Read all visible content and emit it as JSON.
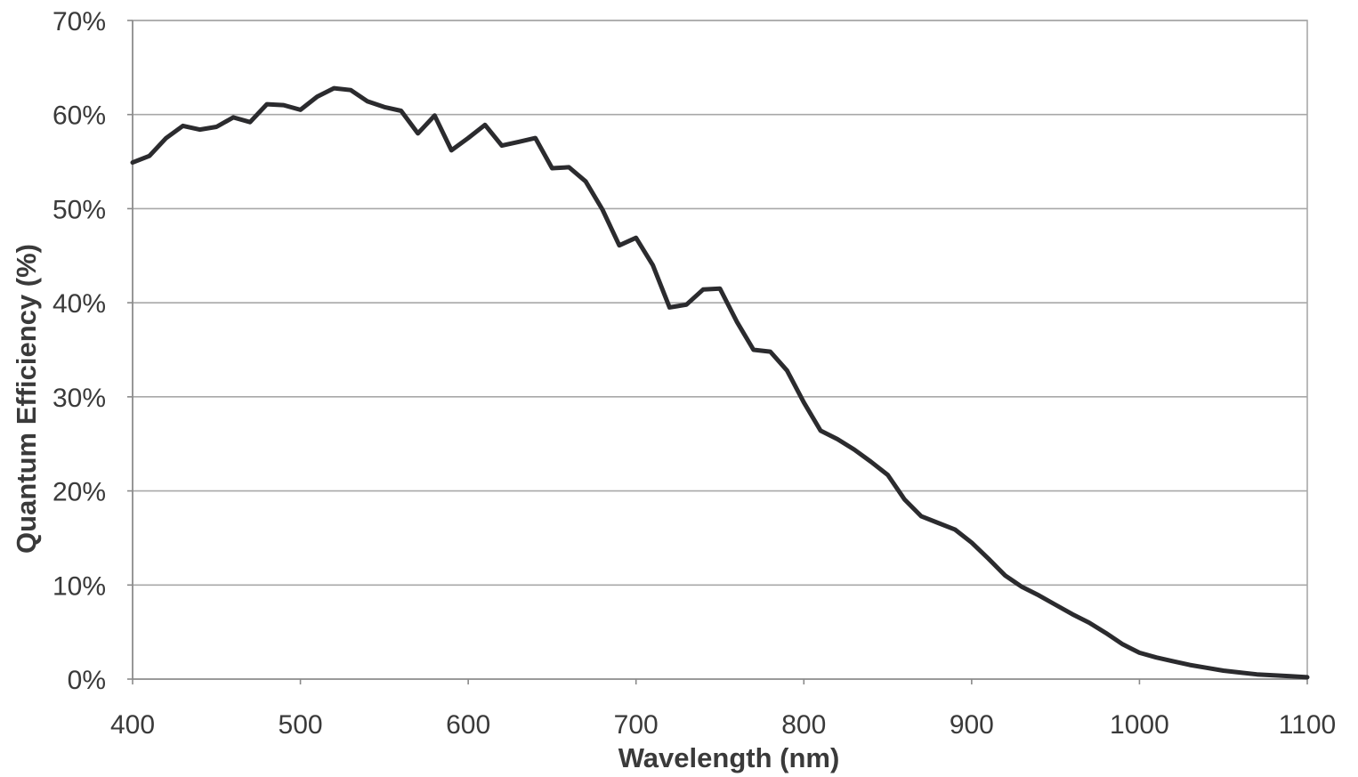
{
  "chart_data": {
    "type": "line",
    "xlabel": "Wavelength (nm)",
    "ylabel": "Quantum Efficiency (%)",
    "xlim": [
      400,
      1100
    ],
    "ylim": [
      0,
      70
    ],
    "x_ticks": [
      400,
      500,
      600,
      700,
      800,
      900,
      1000,
      1100
    ],
    "x_tick_labels": [
      "400",
      "500",
      "600",
      "700",
      "800",
      "900",
      "1000",
      "1100"
    ],
    "y_ticks": [
      0,
      10,
      20,
      30,
      40,
      50,
      60,
      70
    ],
    "y_tick_labels": [
      "0%",
      "10%",
      "20%",
      "30%",
      "40%",
      "50%",
      "60%",
      "70%"
    ],
    "grid": true,
    "legend": "none",
    "line_color": "#2b2b2e",
    "series": [
      {
        "x": [
          400,
          410,
          420,
          430,
          440,
          450,
          460,
          470,
          480,
          490,
          500,
          510,
          520,
          530,
          540,
          550,
          560,
          570,
          580,
          590,
          600,
          610,
          620,
          630,
          640,
          650,
          660,
          670,
          680,
          690,
          700,
          710,
          720,
          730,
          740,
          750,
          760,
          770,
          780,
          790,
          800,
          810,
          820,
          830,
          840,
          850,
          860,
          870,
          880,
          890,
          900,
          910,
          920,
          930,
          940,
          950,
          960,
          970,
          980,
          990,
          1000,
          1010,
          1020,
          1030,
          1040,
          1050,
          1060,
          1070,
          1080,
          1090,
          1100
        ],
        "y": [
          54.9,
          55.6,
          57.5,
          58.8,
          58.4,
          58.7,
          59.7,
          59.2,
          61.1,
          61.0,
          60.5,
          61.9,
          62.8,
          62.6,
          61.4,
          60.8,
          60.4,
          58.0,
          59.9,
          56.2,
          57.5,
          58.9,
          56.7,
          57.1,
          57.5,
          54.3,
          54.4,
          52.9,
          49.9,
          46.1,
          46.9,
          44.0,
          39.5,
          39.8,
          41.4,
          41.5,
          38.0,
          35.0,
          34.8,
          32.8,
          29.4,
          26.4,
          25.5,
          24.4,
          23.1,
          21.7,
          19.1,
          17.3,
          16.6,
          15.9,
          14.5,
          12.8,
          11.0,
          9.8,
          8.9,
          7.9,
          6.9,
          6.0,
          4.9,
          3.7,
          2.8,
          2.3,
          1.9,
          1.5,
          1.2,
          0.9,
          0.7,
          0.5,
          0.4,
          0.3,
          0.2
        ]
      }
    ]
  }
}
